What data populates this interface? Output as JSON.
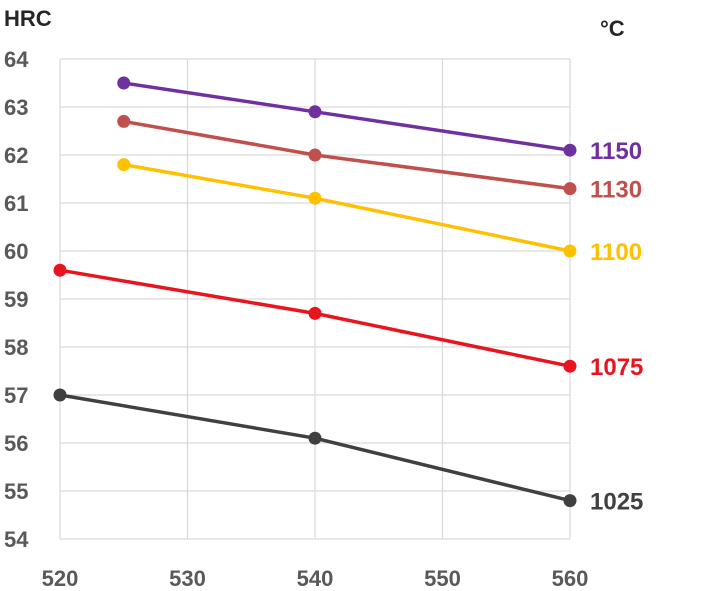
{
  "chart_data": {
    "type": "line",
    "ylabel": "HRC",
    "legend_title": "°C",
    "x_ticks": [
      "520",
      "530",
      "540",
      "550",
      "560"
    ],
    "y_ticks": [
      "54",
      "55",
      "56",
      "57",
      "58",
      "59",
      "60",
      "61",
      "62",
      "63",
      "64"
    ],
    "xlim": [
      520,
      560
    ],
    "ylim": [
      54,
      64
    ],
    "grid": "vertical and horizontal",
    "legend": "series labels at right end of lines",
    "series": [
      {
        "name": "1150",
        "color": "#7030A0",
        "x": [
          525,
          540,
          560
        ],
        "y": [
          63.5,
          62.9,
          62.1
        ]
      },
      {
        "name": "1130",
        "color": "#C0504D",
        "x": [
          525,
          540,
          560
        ],
        "y": [
          62.7,
          62.0,
          61.3
        ]
      },
      {
        "name": "1100",
        "color": "#FFC000",
        "x": [
          525,
          540,
          560
        ],
        "y": [
          61.8,
          61.1,
          60.0
        ]
      },
      {
        "name": "1075",
        "color": "#E8141E",
        "x": [
          520,
          540,
          560
        ],
        "y": [
          59.6,
          58.7,
          57.6
        ]
      },
      {
        "name": "1025",
        "color": "#404040",
        "x": [
          520,
          540,
          560
        ],
        "y": [
          57.0,
          56.1,
          54.8
        ]
      }
    ]
  }
}
